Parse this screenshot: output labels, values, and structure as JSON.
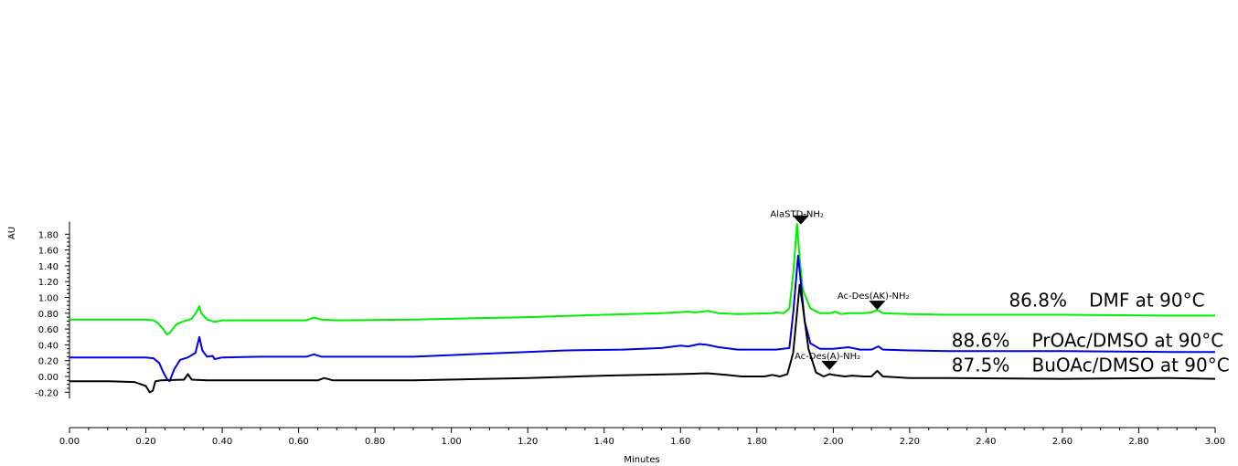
{
  "chart_data": {
    "type": "line",
    "xlabel": "Minutes",
    "ylabel": "AU",
    "xlim": [
      0,
      3.0
    ],
    "ylim": [
      -0.28,
      1.96
    ],
    "x_ticks": [
      "0.00",
      "0.20",
      "0.40",
      "0.60",
      "0.80",
      "1.00",
      "1.20",
      "1.40",
      "1.60",
      "1.80",
      "2.00",
      "2.20",
      "2.40",
      "2.60",
      "2.80",
      "3.00"
    ],
    "y_ticks": [
      "-0.20",
      "0.00",
      "0.20",
      "0.40",
      "0.60",
      "0.80",
      "1.00",
      "1.20",
      "1.40",
      "1.60",
      "1.80"
    ],
    "grid": false,
    "series": [
      {
        "color": "#00ee00",
        "points": [
          [
            0,
            0.72
          ],
          [
            0.2,
            0.72
          ],
          [
            0.22,
            0.71
          ],
          [
            0.23,
            0.68
          ],
          [
            0.245,
            0.6
          ],
          [
            0.255,
            0.53
          ],
          [
            0.262,
            0.55
          ],
          [
            0.28,
            0.66
          ],
          [
            0.3,
            0.7
          ],
          [
            0.32,
            0.73
          ],
          [
            0.333,
            0.82
          ],
          [
            0.34,
            0.89
          ],
          [
            0.345,
            0.8
          ],
          [
            0.36,
            0.72
          ],
          [
            0.38,
            0.69
          ],
          [
            0.4,
            0.71
          ],
          [
            0.5,
            0.71
          ],
          [
            0.62,
            0.71
          ],
          [
            0.64,
            0.745
          ],
          [
            0.66,
            0.72
          ],
          [
            0.7,
            0.71
          ],
          [
            0.9,
            0.72
          ],
          [
            1.2,
            0.75
          ],
          [
            1.4,
            0.78
          ],
          [
            1.55,
            0.8
          ],
          [
            1.62,
            0.82
          ],
          [
            1.64,
            0.81
          ],
          [
            1.67,
            0.83
          ],
          [
            1.7,
            0.8
          ],
          [
            1.75,
            0.79
          ],
          [
            1.84,
            0.8
          ],
          [
            1.85,
            0.81
          ],
          [
            1.87,
            0.8
          ],
          [
            1.885,
            0.86
          ],
          [
            1.895,
            1.3
          ],
          [
            1.905,
            1.93
          ],
          [
            1.912,
            1.5
          ],
          [
            1.92,
            1.1
          ],
          [
            1.94,
            0.86
          ],
          [
            1.965,
            0.8
          ],
          [
            1.99,
            0.8
          ],
          [
            2.005,
            0.82
          ],
          [
            2.02,
            0.79
          ],
          [
            2.04,
            0.8
          ],
          [
            2.08,
            0.8
          ],
          [
            2.1,
            0.81
          ],
          [
            2.115,
            0.84
          ],
          [
            2.13,
            0.8
          ],
          [
            2.2,
            0.79
          ],
          [
            2.3,
            0.78
          ],
          [
            2.6,
            0.78
          ],
          [
            2.88,
            0.77
          ],
          [
            3.0,
            0.77
          ]
        ]
      },
      {
        "color": "#0000dd",
        "points": [
          [
            0,
            0.24
          ],
          [
            0.2,
            0.24
          ],
          [
            0.22,
            0.23
          ],
          [
            0.235,
            0.17
          ],
          [
            0.245,
            0.06
          ],
          [
            0.255,
            -0.03
          ],
          [
            0.262,
            -0.06
          ],
          [
            0.275,
            0.1
          ],
          [
            0.29,
            0.21
          ],
          [
            0.31,
            0.24
          ],
          [
            0.33,
            0.3
          ],
          [
            0.34,
            0.5
          ],
          [
            0.348,
            0.33
          ],
          [
            0.36,
            0.25
          ],
          [
            0.375,
            0.26
          ],
          [
            0.38,
            0.22
          ],
          [
            0.4,
            0.24
          ],
          [
            0.5,
            0.25
          ],
          [
            0.62,
            0.25
          ],
          [
            0.64,
            0.28
          ],
          [
            0.66,
            0.25
          ],
          [
            0.7,
            0.25
          ],
          [
            0.9,
            0.25
          ],
          [
            1.1,
            0.29
          ],
          [
            1.3,
            0.33
          ],
          [
            1.45,
            0.34
          ],
          [
            1.55,
            0.36
          ],
          [
            1.6,
            0.39
          ],
          [
            1.62,
            0.38
          ],
          [
            1.65,
            0.41
          ],
          [
            1.67,
            0.4
          ],
          [
            1.7,
            0.37
          ],
          [
            1.75,
            0.34
          ],
          [
            1.85,
            0.34
          ],
          [
            1.885,
            0.36
          ],
          [
            1.895,
            0.8
          ],
          [
            1.908,
            1.53
          ],
          [
            1.915,
            1.2
          ],
          [
            1.925,
            0.7
          ],
          [
            1.94,
            0.42
          ],
          [
            1.965,
            0.35
          ],
          [
            2.0,
            0.35
          ],
          [
            2.04,
            0.37
          ],
          [
            2.07,
            0.34
          ],
          [
            2.1,
            0.34
          ],
          [
            2.118,
            0.38
          ],
          [
            2.13,
            0.34
          ],
          [
            2.2,
            0.33
          ],
          [
            2.3,
            0.32
          ],
          [
            2.6,
            0.32
          ],
          [
            2.88,
            0.31
          ],
          [
            3.0,
            0.31
          ]
        ]
      },
      {
        "color": "#000000",
        "points": [
          [
            0,
            -0.06
          ],
          [
            0.1,
            -0.06
          ],
          [
            0.17,
            -0.07
          ],
          [
            0.2,
            -0.12
          ],
          [
            0.21,
            -0.2
          ],
          [
            0.218,
            -0.18
          ],
          [
            0.225,
            -0.06
          ],
          [
            0.24,
            -0.05
          ],
          [
            0.3,
            -0.04
          ],
          [
            0.31,
            0.03
          ],
          [
            0.32,
            -0.04
          ],
          [
            0.36,
            -0.05
          ],
          [
            0.4,
            -0.05
          ],
          [
            0.5,
            -0.05
          ],
          [
            0.65,
            -0.05
          ],
          [
            0.667,
            -0.02
          ],
          [
            0.69,
            -0.05
          ],
          [
            0.9,
            -0.05
          ],
          [
            1.2,
            -0.02
          ],
          [
            1.4,
            0.01
          ],
          [
            1.6,
            0.03
          ],
          [
            1.67,
            0.04
          ],
          [
            1.72,
            0.02
          ],
          [
            1.76,
            0.0
          ],
          [
            1.82,
            0.0
          ],
          [
            1.84,
            0.02
          ],
          [
            1.86,
            0.0
          ],
          [
            1.88,
            0.03
          ],
          [
            1.895,
            0.3
          ],
          [
            1.912,
            1.16
          ],
          [
            1.92,
            0.9
          ],
          [
            1.935,
            0.35
          ],
          [
            1.955,
            0.05
          ],
          [
            1.975,
            0.0
          ],
          [
            1.99,
            0.03
          ],
          [
            2.0,
            0.02
          ],
          [
            2.03,
            0.0
          ],
          [
            2.05,
            0.01
          ],
          [
            2.08,
            0.0
          ],
          [
            2.1,
            0.0
          ],
          [
            2.115,
            0.07
          ],
          [
            2.13,
            0.0
          ],
          [
            2.2,
            -0.02
          ],
          [
            2.3,
            -0.02
          ],
          [
            2.6,
            -0.03
          ],
          [
            2.88,
            -0.02
          ],
          [
            3.0,
            -0.03
          ]
        ]
      }
    ],
    "peak_labels": [
      {
        "text": "AlaSTD-NH₂",
        "x": 1.905,
        "y": 2.02
      },
      {
        "text": "Ac-Des(AK)-NH₂",
        "x": 2.105,
        "y": 0.98
      },
      {
        "text": "Ac-Des(A)-NH₂",
        "x": 1.985,
        "y": 0.22
      }
    ],
    "markers": [
      {
        "x": 1.915,
        "y": 1.98
      },
      {
        "x": 2.115,
        "y": 0.9
      },
      {
        "x": 1.99,
        "y": 0.14
      }
    ],
    "annotations": [
      {
        "pct": "86.8%",
        "label": "DMF at 90°C",
        "pct_x": 2.46,
        "label_x": 2.67,
        "y": 0.885
      },
      {
        "pct": "88.6%",
        "label": "PrOAc/DMSO at 90°C",
        "pct_x": 2.31,
        "label_x": 2.52,
        "y": 0.375
      },
      {
        "pct": "87.5%",
        "label": "BuOAc/DMSO at 90°C",
        "pct_x": 2.31,
        "label_x": 2.52,
        "y": 0.065
      }
    ]
  }
}
